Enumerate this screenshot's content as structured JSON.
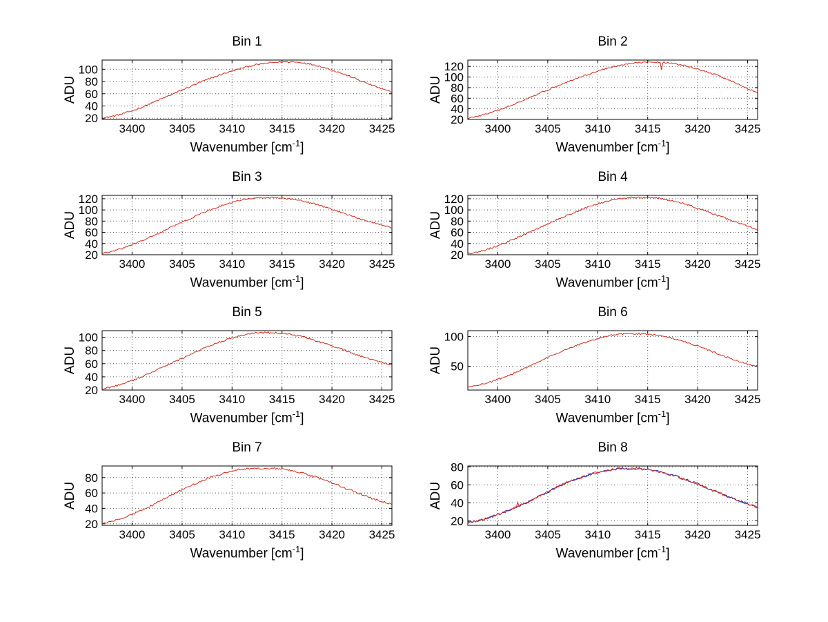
{
  "figure": {
    "background": "#ffffff"
  },
  "chart_data": [
    {
      "type": "line",
      "title": "Bin 1",
      "ylabel": "ADU",
      "xlabel_pre": "Wavenumber [cm",
      "xlabel_sup": "-1",
      "xlabel_post": "]",
      "xlim": [
        3397,
        3426
      ],
      "ylim": [
        18,
        115
      ],
      "xticks": [
        3400,
        3405,
        3410,
        3415,
        3420,
        3425
      ],
      "yticks": [
        20,
        40,
        60,
        80,
        100
      ],
      "grid": true,
      "noise": 1.3,
      "x": [
        3397,
        3398,
        3399,
        3400,
        3401,
        3402,
        3403,
        3404,
        3405,
        3406,
        3407,
        3408,
        3409,
        3410,
        3411,
        3412,
        3413,
        3414,
        3415,
        3416,
        3417,
        3418,
        3419,
        3420,
        3421,
        3422,
        3423,
        3424,
        3425,
        3426
      ],
      "series": [
        {
          "name": "spectrum",
          "color": "#d02818",
          "values": [
            20,
            23,
            27,
            32,
            38,
            45,
            52,
            59,
            66,
            73,
            80,
            86,
            92,
            97,
            102,
            106,
            109,
            111,
            112,
            112,
            111,
            108,
            104,
            99,
            93,
            87,
            80,
            74,
            68,
            62
          ]
        }
      ]
    },
    {
      "type": "line",
      "title": "Bin 2",
      "ylabel": "ADU",
      "xlabel_pre": "Wavenumber [cm",
      "xlabel_sup": "-1",
      "xlabel_post": "]",
      "xlim": [
        3397,
        3426
      ],
      "ylim": [
        20,
        132
      ],
      "xticks": [
        3400,
        3405,
        3410,
        3415,
        3420,
        3425
      ],
      "yticks": [
        20,
        40,
        60,
        80,
        100,
        120
      ],
      "grid": true,
      "noise": 1.4,
      "spikes": [
        {
          "x": 3416.4,
          "dy": -13
        }
      ],
      "x": [
        3397,
        3398,
        3399,
        3400,
        3401,
        3402,
        3403,
        3404,
        3405,
        3406,
        3407,
        3408,
        3409,
        3410,
        3411,
        3412,
        3413,
        3414,
        3415,
        3416,
        3417,
        3418,
        3419,
        3420,
        3421,
        3422,
        3423,
        3424,
        3425,
        3426
      ],
      "series": [
        {
          "name": "spectrum",
          "color": "#d02818",
          "values": [
            22,
            26,
            31,
            37,
            44,
            52,
            60,
            68,
            76,
            84,
            91,
            98,
            105,
            111,
            117,
            121,
            125,
            127,
            128,
            128,
            127,
            124,
            120,
            115,
            109,
            103,
            96,
            87,
            78,
            70
          ]
        }
      ]
    },
    {
      "type": "line",
      "title": "Bin 3",
      "ylabel": "ADU",
      "xlabel_pre": "Wavenumber [cm",
      "xlabel_sup": "-1",
      "xlabel_post": "]",
      "xlim": [
        3397,
        3426
      ],
      "ylim": [
        20,
        126
      ],
      "xticks": [
        3400,
        3405,
        3410,
        3415,
        3420,
        3425
      ],
      "yticks": [
        20,
        40,
        60,
        80,
        100,
        120
      ],
      "grid": true,
      "noise": 1.3,
      "x": [
        3397,
        3398,
        3399,
        3400,
        3401,
        3402,
        3403,
        3404,
        3405,
        3406,
        3407,
        3408,
        3409,
        3410,
        3411,
        3412,
        3413,
        3414,
        3415,
        3416,
        3417,
        3418,
        3419,
        3420,
        3421,
        3422,
        3423,
        3424,
        3425,
        3426
      ],
      "series": [
        {
          "name": "spectrum",
          "color": "#d02818",
          "values": [
            22,
            26,
            31,
            38,
            45,
            53,
            61,
            70,
            78,
            86,
            94,
            101,
            108,
            113,
            118,
            121,
            122,
            122,
            121,
            119,
            116,
            112,
            107,
            101,
            95,
            89,
            83,
            78,
            73,
            68
          ]
        }
      ]
    },
    {
      "type": "line",
      "title": "Bin 4",
      "ylabel": "ADU",
      "xlabel_pre": "Wavenumber [cm",
      "xlabel_sup": "-1",
      "xlabel_post": "]",
      "xlim": [
        3397,
        3426
      ],
      "ylim": [
        20,
        126
      ],
      "xticks": [
        3400,
        3405,
        3410,
        3415,
        3420,
        3425
      ],
      "yticks": [
        20,
        40,
        60,
        80,
        100,
        120
      ],
      "grid": true,
      "noise": 1.5,
      "x": [
        3397,
        3398,
        3399,
        3400,
        3401,
        3402,
        3403,
        3404,
        3405,
        3406,
        3407,
        3408,
        3409,
        3410,
        3411,
        3412,
        3413,
        3414,
        3415,
        3416,
        3417,
        3418,
        3419,
        3420,
        3421,
        3422,
        3423,
        3424,
        3425,
        3426
      ],
      "series": [
        {
          "name": "spectrum",
          "color": "#d02818",
          "values": [
            22,
            25,
            30,
            36,
            43,
            51,
            59,
            67,
            75,
            83,
            91,
            98,
            105,
            111,
            116,
            120,
            122,
            122,
            122,
            121,
            118,
            114,
            109,
            103,
            97,
            90,
            84,
            77,
            71,
            65
          ]
        }
      ]
    },
    {
      "type": "line",
      "title": "Bin 5",
      "ylabel": "ADU",
      "xlabel_pre": "Wavenumber [cm",
      "xlabel_sup": "-1",
      "xlabel_post": "]",
      "xlim": [
        3397,
        3426
      ],
      "ylim": [
        20,
        110
      ],
      "xticks": [
        3400,
        3405,
        3410,
        3415,
        3420,
        3425
      ],
      "yticks": [
        20,
        40,
        60,
        80,
        100
      ],
      "grid": true,
      "noise": 1.3,
      "x": [
        3397,
        3398,
        3399,
        3400,
        3401,
        3402,
        3403,
        3404,
        3405,
        3406,
        3407,
        3408,
        3409,
        3410,
        3411,
        3412,
        3413,
        3414,
        3415,
        3416,
        3417,
        3418,
        3419,
        3420,
        3421,
        3422,
        3423,
        3424,
        3425,
        3426
      ],
      "series": [
        {
          "name": "spectrum",
          "color": "#d02818",
          "values": [
            22,
            25,
            29,
            34,
            40,
            47,
            54,
            61,
            68,
            75,
            82,
            88,
            94,
            99,
            103,
            106,
            107,
            107,
            106,
            104,
            101,
            97,
            92,
            87,
            82,
            76,
            71,
            66,
            62,
            58
          ]
        }
      ]
    },
    {
      "type": "line",
      "title": "Bin 6",
      "ylabel": "ADU",
      "xlabel_pre": "Wavenumber [cm",
      "xlabel_sup": "-1",
      "xlabel_post": "]",
      "xlim": [
        3397,
        3426
      ],
      "ylim": [
        10,
        110
      ],
      "xticks": [
        3400,
        3405,
        3410,
        3415,
        3420,
        3425
      ],
      "yticks": [
        50,
        100
      ],
      "grid": true,
      "noise": 1.3,
      "x": [
        3397,
        3398,
        3399,
        3400,
        3401,
        3402,
        3403,
        3404,
        3405,
        3406,
        3407,
        3408,
        3409,
        3410,
        3411,
        3412,
        3413,
        3414,
        3415,
        3416,
        3417,
        3418,
        3419,
        3420,
        3421,
        3422,
        3423,
        3424,
        3425,
        3426
      ],
      "series": [
        {
          "name": "spectrum",
          "color": "#d02818",
          "values": [
            15,
            18,
            22,
            28,
            34,
            41,
            49,
            57,
            65,
            72,
            79,
            86,
            92,
            97,
            101,
            104,
            105,
            105,
            104,
            102,
            99,
            95,
            90,
            84,
            78,
            71,
            65,
            59,
            54,
            50
          ]
        }
      ]
    },
    {
      "type": "line",
      "title": "Bin 7",
      "ylabel": "ADU",
      "xlabel_pre": "Wavenumber [cm",
      "xlabel_sup": "-1",
      "xlabel_post": "]",
      "xlim": [
        3397,
        3426
      ],
      "ylim": [
        18,
        95
      ],
      "xticks": [
        3400,
        3405,
        3410,
        3415,
        3420,
        3425
      ],
      "yticks": [
        20,
        40,
        60,
        80
      ],
      "grid": true,
      "noise": 1.2,
      "x": [
        3397,
        3398,
        3399,
        3400,
        3401,
        3402,
        3403,
        3404,
        3405,
        3406,
        3407,
        3408,
        3409,
        3410,
        3411,
        3412,
        3413,
        3414,
        3415,
        3416,
        3417,
        3418,
        3419,
        3420,
        3421,
        3422,
        3423,
        3424,
        3425,
        3426
      ],
      "series": [
        {
          "name": "spectrum",
          "color": "#d02818",
          "values": [
            20,
            23,
            27,
            32,
            38,
            44,
            51,
            58,
            64,
            70,
            76,
            81,
            85,
            89,
            91,
            92,
            92,
            92,
            91,
            89,
            86,
            82,
            78,
            73,
            68,
            63,
            58,
            53,
            49,
            45
          ]
        }
      ]
    },
    {
      "type": "line",
      "title": "Bin 8",
      "ylabel": "ADU",
      "xlabel_pre": "Wavenumber [cm",
      "xlabel_sup": "-1",
      "xlabel_post": "]",
      "xlim": [
        3397,
        3426
      ],
      "ylim": [
        15,
        81
      ],
      "xticks": [
        3400,
        3405,
        3410,
        3415,
        3420,
        3425
      ],
      "yticks": [
        20,
        40,
        60,
        80
      ],
      "grid": true,
      "noise": 1.2,
      "spikes": [
        {
          "x": 3402,
          "dy": 4
        }
      ],
      "x": [
        3397,
        3398,
        3399,
        3400,
        3401,
        3402,
        3403,
        3404,
        3405,
        3406,
        3407,
        3408,
        3409,
        3410,
        3411,
        3412,
        3413,
        3414,
        3415,
        3416,
        3417,
        3418,
        3419,
        3420,
        3421,
        3422,
        3423,
        3424,
        3425,
        3426
      ],
      "series": [
        {
          "name": "spectrum-blue",
          "color": "#2323bb",
          "values": [
            18,
            20,
            23,
            27,
            31,
            36,
            41,
            47,
            52,
            58,
            63,
            67,
            71,
            74,
            76,
            78,
            78,
            78,
            77,
            75,
            72,
            69,
            65,
            61,
            56,
            52,
            47,
            43,
            39,
            35
          ]
        },
        {
          "name": "spectrum-red",
          "color": "#d02818",
          "values": [
            18,
            20,
            23,
            27,
            31,
            36,
            41,
            47,
            52,
            58,
            63,
            67,
            71,
            74,
            76,
            78,
            78,
            78,
            77,
            75,
            72,
            69,
            65,
            61,
            56,
            52,
            47,
            43,
            39,
            35
          ]
        }
      ]
    }
  ]
}
